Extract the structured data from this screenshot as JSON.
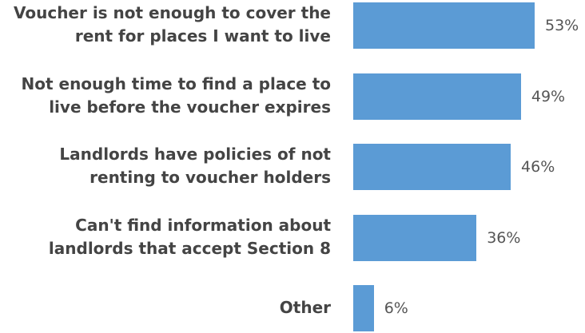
{
  "chart_data": {
    "type": "bar",
    "orientation": "horizontal",
    "categories": [
      "Voucher is not enough to cover the\nrent for places I want to live",
      "Not enough time to find a place to\nlive before the voucher expires",
      "Landlords have policies of not\nrenting to voucher holders",
      "Can't find information about\nlandlords that accept Section 8",
      "Other"
    ],
    "values": [
      53,
      49,
      46,
      36,
      6
    ],
    "value_labels": [
      "53%",
      "49%",
      "46%",
      "36%",
      "6%"
    ],
    "value_unit": "%",
    "xlim": [
      0,
      100
    ],
    "title": "",
    "xlabel": "",
    "ylabel": "",
    "grid": false,
    "legend": "none",
    "bar_color": "#5b9bd5"
  }
}
